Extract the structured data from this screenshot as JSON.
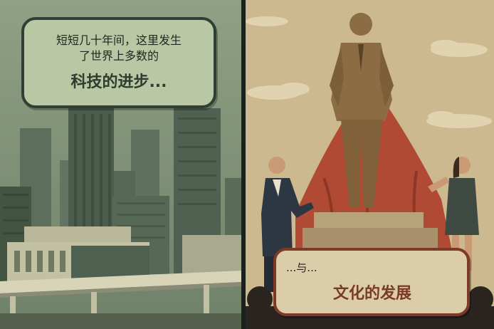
{
  "panels": {
    "left": {
      "caption_line1": "短短几十年间，这里发生",
      "caption_line2": "了世界上多数的",
      "caption_emphasis": "科技的进步..."
    },
    "right": {
      "caption_prefix": "...与...",
      "caption_emphasis": "文化的发展"
    }
  },
  "colors": {
    "left_sky": "#7f9077",
    "right_sky": "#cbb78f",
    "cape": "#b04a34",
    "statue": "#8c6c43"
  }
}
